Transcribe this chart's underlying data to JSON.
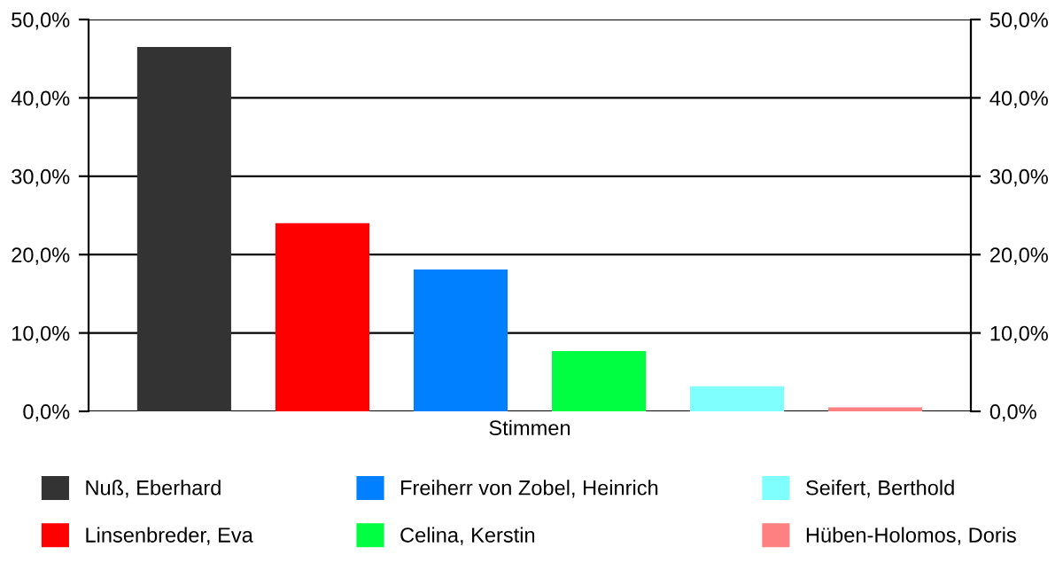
{
  "chart_data": {
    "type": "bar",
    "categories": [
      "Stimmen"
    ],
    "series": [
      {
        "name": "Nuß, Eberhard",
        "color": "#333333",
        "values": [
          46.5
        ]
      },
      {
        "name": "Linsenbreder, Eva",
        "color": "#ff0000",
        "values": [
          24.0
        ]
      },
      {
        "name": "Freiherr von Zobel, Heinrich",
        "color": "#0080ff",
        "values": [
          18.1
        ]
      },
      {
        "name": "Celina, Kerstin",
        "color": "#00ff40",
        "values": [
          7.7
        ]
      },
      {
        "name": "Seifert, Berthold",
        "color": "#80ffff",
        "values": [
          3.2
        ]
      },
      {
        "name": "Hüben-Holomos, Doris",
        "color": "#ff8080",
        "values": [
          0.5
        ]
      }
    ],
    "ylim": [
      0,
      50
    ],
    "yticks": [
      {
        "value": 0,
        "label": "0,0%"
      },
      {
        "value": 10,
        "label": "10,0%"
      },
      {
        "value": 20,
        "label": "20,0%"
      },
      {
        "value": 30,
        "label": "30,0%"
      },
      {
        "value": 40,
        "label": "40,0%"
      },
      {
        "value": 50,
        "label": "50,0%"
      }
    ],
    "grid": "y",
    "legend": "bottom"
  }
}
